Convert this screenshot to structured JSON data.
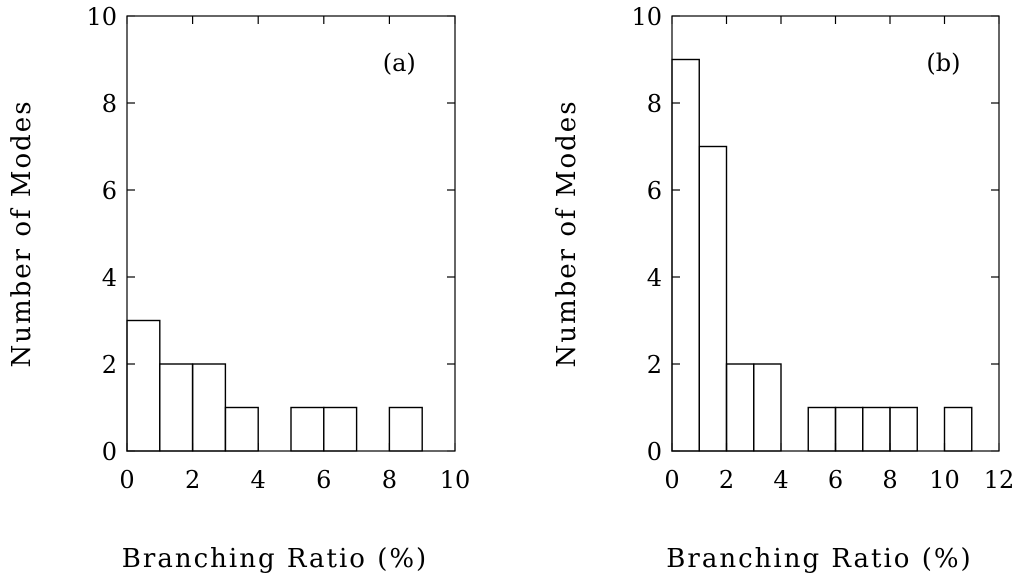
{
  "chart_data": [
    {
      "type": "bar",
      "panel_label": "(a)",
      "xlabel": "Branching Ratio (%)",
      "ylabel": "Number of Modes",
      "xlim": [
        0,
        10
      ],
      "ylim": [
        0,
        10
      ],
      "xticks": [
        0,
        2,
        4,
        6,
        8,
        10
      ],
      "yticks": [
        0,
        2,
        4,
        6,
        8,
        10
      ],
      "bin_edges": [
        0,
        1,
        2,
        3,
        4,
        5,
        6,
        7,
        8,
        9
      ],
      "counts": [
        3,
        2,
        2,
        1,
        0,
        1,
        1,
        0,
        1
      ],
      "grid": false
    },
    {
      "type": "bar",
      "panel_label": "(b)",
      "xlabel": "Branching Ratio (%)",
      "ylabel": "Number of Modes",
      "xlim": [
        0,
        12
      ],
      "ylim": [
        0,
        10
      ],
      "xticks": [
        0,
        2,
        4,
        6,
        8,
        10,
        12
      ],
      "yticks": [
        0,
        2,
        4,
        6,
        8,
        10
      ],
      "bin_edges": [
        0,
        1,
        2,
        3,
        4,
        5,
        6,
        7,
        8,
        9,
        10,
        11
      ],
      "counts": [
        9,
        7,
        2,
        2,
        0,
        1,
        1,
        1,
        1,
        0,
        1
      ],
      "grid": false
    }
  ]
}
